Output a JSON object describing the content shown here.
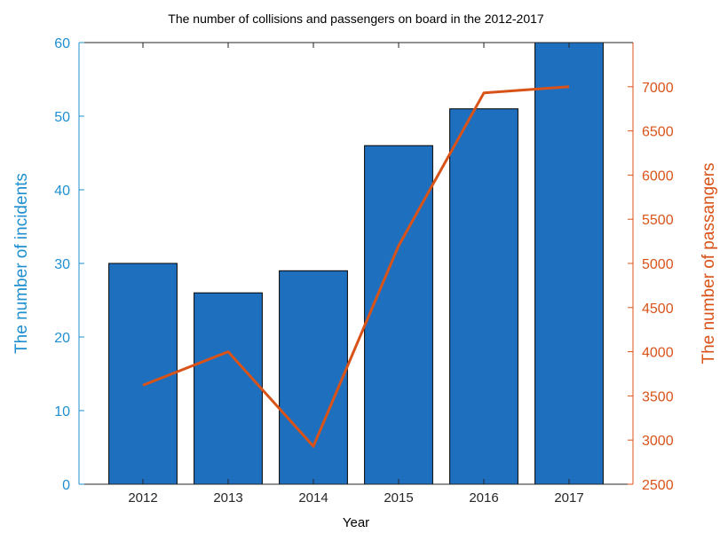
{
  "chart_data": {
    "type": "bar",
    "title": "The number of collisions and passengers on board in the 2012-2017",
    "xlabel": "Year",
    "ylabel_left": "The number of incidents",
    "ylabel_right": "The number of passangers",
    "categories": [
      "2012",
      "2013",
      "2014",
      "2015",
      "2016",
      "2017"
    ],
    "ylim_left": [
      0,
      60
    ],
    "ylim_right": [
      2500,
      7500
    ],
    "yticks_left": [
      "0",
      "10",
      "20",
      "30",
      "40",
      "50",
      "60"
    ],
    "yticks_right": [
      "2500",
      "3000",
      "3500",
      "4000",
      "4500",
      "5000",
      "5500",
      "6000",
      "6500",
      "7000"
    ],
    "series": [
      {
        "type": "bar",
        "axis": "left",
        "values": [
          30,
          26,
          29,
          46,
          51,
          60
        ],
        "color": "#1f6fbf"
      },
      {
        "type": "line",
        "axis": "right",
        "values": [
          3620,
          4000,
          2930,
          5200,
          6930,
          7000
        ],
        "color": "#d95319"
      }
    ],
    "colors": {
      "left_axis": "#1f8fd0",
      "right_axis": "#d95319",
      "bar": "#1f6fbf",
      "line": "#d95319"
    }
  }
}
